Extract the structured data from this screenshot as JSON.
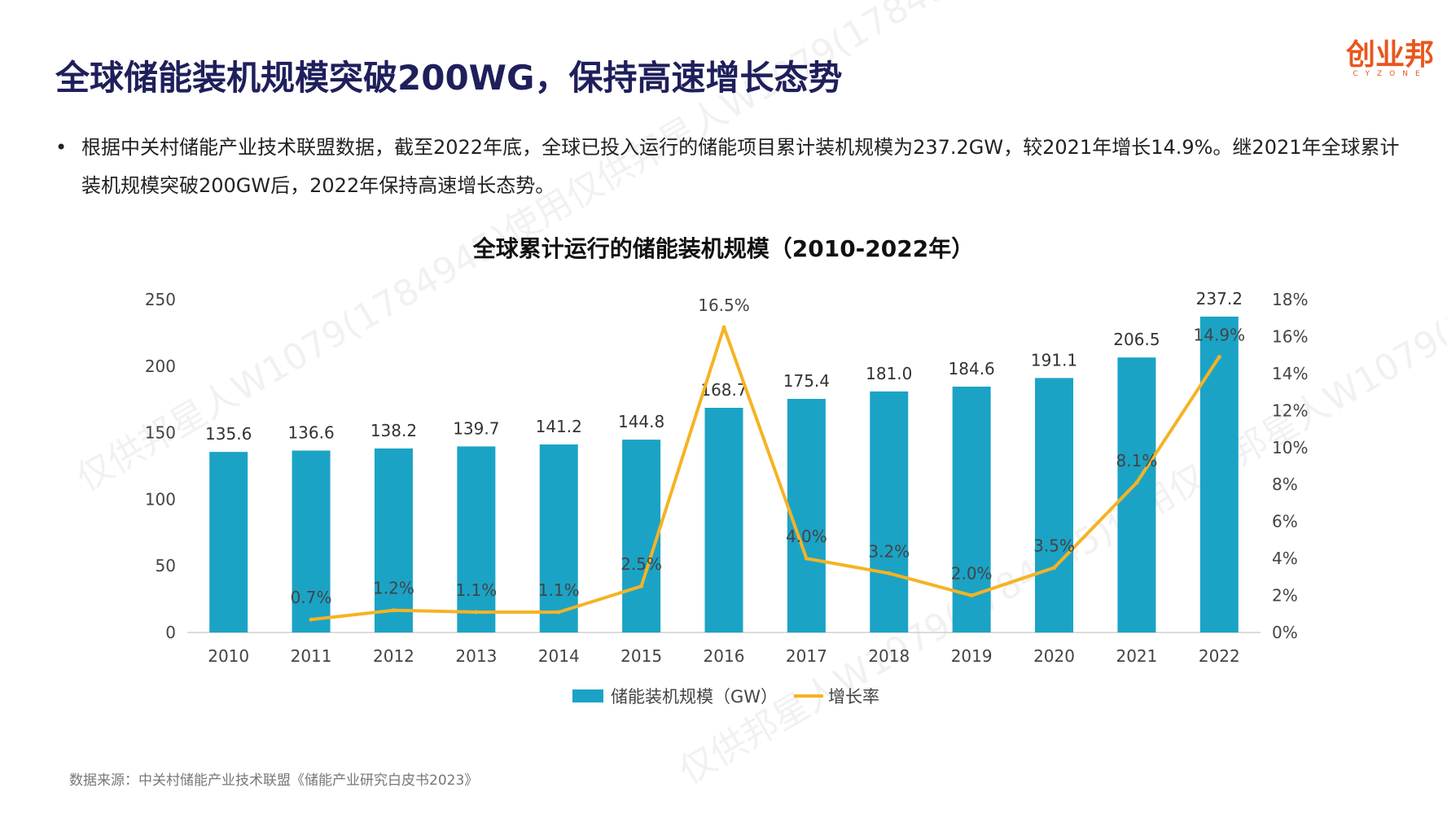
{
  "header": {
    "title": "全球储能装机规模突破200WG，保持高速增长态势"
  },
  "logo": {
    "main": "创业邦",
    "sub": "CYZONE"
  },
  "bullet": {
    "text": "根据中关村储能产业技术联盟数据，截至2022年底，全球已投入运行的储能项目累计装机规模为237.2GW，较2021年增长14.9%。继2021年全球累计装机规模突破200GW后，2022年保持高速增长态势。"
  },
  "source": "数据来源：中关村储能产业技术联盟《储能产业研究白皮书2023》",
  "watermark": "仅供邦星人W1079(1784945)使用仅供邦星人W1079(1784945)使用",
  "colors": {
    "bar": "#1ba3c6",
    "line": "#f5b324",
    "title": "#1f1f5c",
    "logo": "#e8561e"
  },
  "chart_data": {
    "type": "bar",
    "title": "全球累计运行的储能装机规模（2010-2022年）",
    "categories": [
      "2010",
      "2011",
      "2012",
      "2013",
      "2014",
      "2015",
      "2016",
      "2017",
      "2018",
      "2019",
      "2020",
      "2021",
      "2022"
    ],
    "series": [
      {
        "name": "储能装机规模（GW）",
        "type": "bar",
        "axis": "left",
        "values": [
          135.6,
          136.6,
          138.2,
          139.7,
          141.2,
          144.8,
          168.7,
          175.4,
          181.0,
          184.6,
          191.1,
          206.5,
          237.2
        ],
        "labels": [
          "135.6",
          "136.6",
          "138.2",
          "139.7",
          "141.2",
          "144.8",
          "168.7",
          "175.4",
          "181.0",
          "184.6",
          "191.1",
          "206.5",
          "237.2"
        ]
      },
      {
        "name": "增长率",
        "type": "line",
        "axis": "right",
        "values": [
          null,
          0.7,
          1.2,
          1.1,
          1.1,
          2.5,
          16.5,
          4.0,
          3.2,
          2.0,
          3.5,
          8.1,
          14.9
        ],
        "labels": [
          "",
          "0.7%",
          "1.2%",
          "1.1%",
          "1.1%",
          "2.5%",
          "16.5%",
          "4.0%",
          "3.2%",
          "2.0%",
          "3.5%",
          "8.1%",
          "14.9%"
        ]
      }
    ],
    "ylim": [
      0,
      250
    ],
    "yticks": [
      "0",
      "50",
      "100",
      "150",
      "200",
      "250"
    ],
    "y2lim": [
      0,
      18
    ],
    "y2ticks": [
      "0%",
      "2%",
      "4%",
      "6%",
      "8%",
      "10%",
      "12%",
      "14%",
      "16%",
      "18%"
    ],
    "legend": "bottom",
    "grid": false
  }
}
